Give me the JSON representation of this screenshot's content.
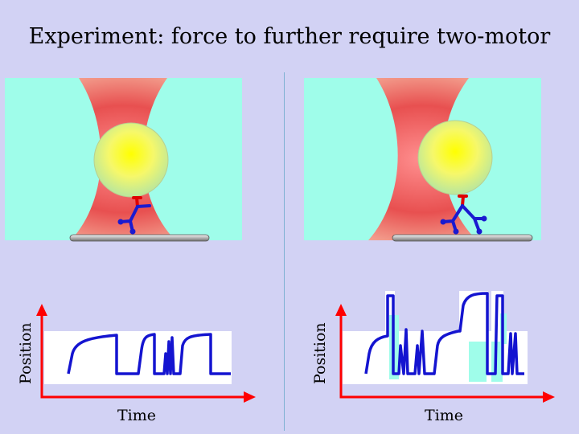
{
  "title": "Experiment: force to further require two-motor",
  "left_plot": {
    "ylabel": "Position",
    "xlabel": "Time"
  },
  "right_plot": {
    "ylabel": "Position",
    "xlabel": "Time"
  },
  "colors": {
    "background": "#d2d2f4",
    "aqua": "#9ffdea",
    "trap_red": "#e04848",
    "bead_yellow": "#ffff30",
    "motor_blue": "#1a1ad0",
    "motor_red": "#e00000",
    "axis_red": "#ff0000",
    "trace_blue": "#1414d0"
  },
  "icons": [
    "optical-trap",
    "bead",
    "motor-protein",
    "microtubule"
  ]
}
